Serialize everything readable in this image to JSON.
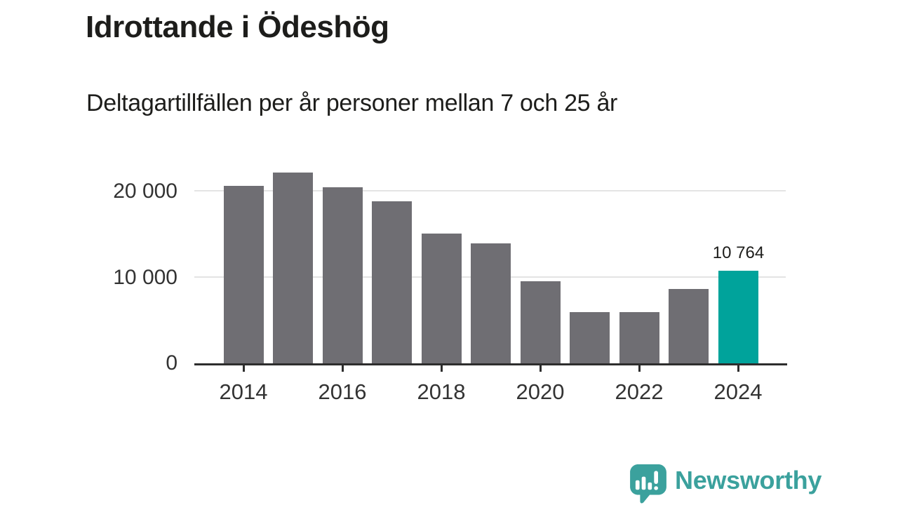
{
  "chart_data": {
    "type": "bar",
    "title": "Idrottande i Ödeshög",
    "subtitle": "Deltagartillfällen per år personer mellan 7 och 25 år",
    "categories": [
      "2014",
      "2015",
      "2016",
      "2017",
      "2018",
      "2019",
      "2020",
      "2021",
      "2022",
      "2023",
      "2024"
    ],
    "values": [
      20650,
      22200,
      20550,
      18850,
      15150,
      14000,
      9600,
      5950,
      6000,
      8650,
      10764
    ],
    "highlight_index": 10,
    "highlight_label": "10 764",
    "xlabel": "",
    "ylabel": "",
    "xticks": [
      "2014",
      "2016",
      "2018",
      "2020",
      "2022",
      "2024"
    ],
    "yticks": [
      {
        "label": "0",
        "value": 0
      },
      {
        "label": "10 000",
        "value": 10000
      },
      {
        "label": "20 000",
        "value": 20000
      }
    ],
    "gridline_values": [
      10000,
      20000
    ],
    "ylim": [
      0,
      23000
    ],
    "grid": true,
    "legend": "none",
    "bar_color": "#6f6e73",
    "highlight_color": "#00a39b"
  },
  "colors": {
    "title_text": "#1d1d1b",
    "axis_text": "#333333",
    "gridline": "#e4e4e4",
    "axis_line": "#2d2d2d"
  },
  "branding": {
    "logo_text": "Newsworthy",
    "logo_icon": "speech-bubble-bar-chart-exclamation",
    "logo_color": "#3ba19d"
  }
}
